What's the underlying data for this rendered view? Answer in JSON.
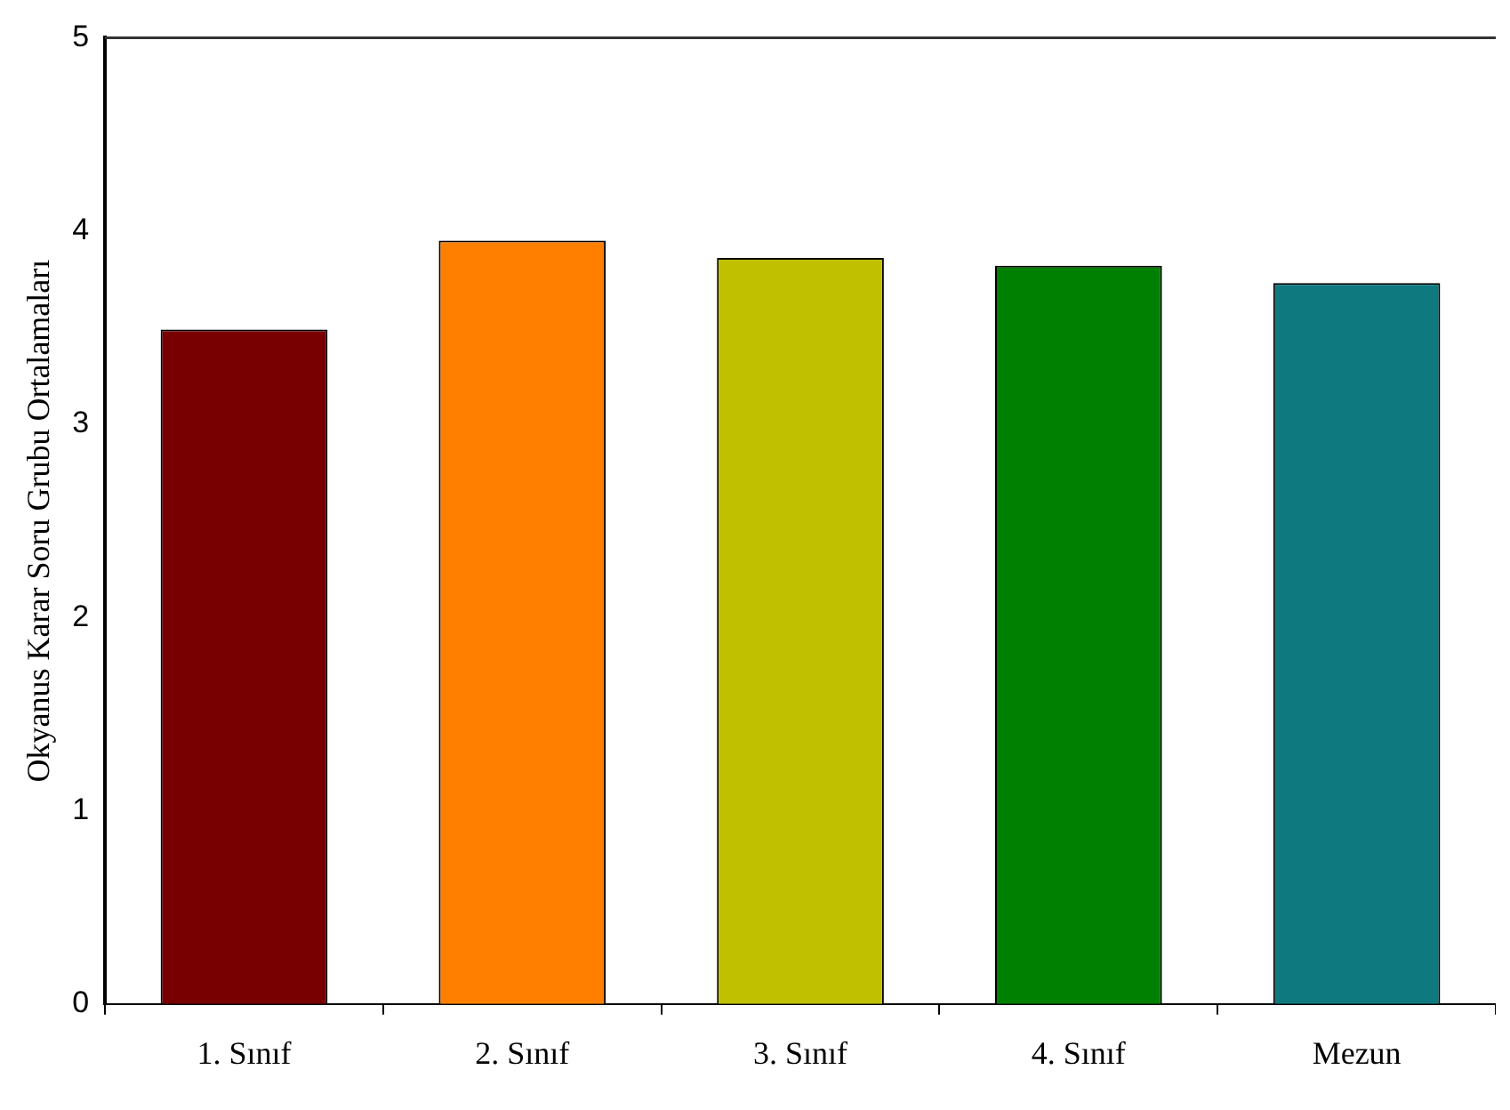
{
  "chart_data": {
    "type": "bar",
    "ylabel": "Okyanus Karar Soru Grubu Ortalamaları",
    "categories": [
      "1. Sınıf",
      "2. Sınıf",
      "3. Sınıf",
      "4. Sınıf",
      "Mezun"
    ],
    "values": [
      3.49,
      3.95,
      3.86,
      3.82,
      3.73
    ],
    "colors": [
      "#780000",
      "#ff8000",
      "#c0c000",
      "#008000",
      "#0e7a80"
    ],
    "ylim": [
      0,
      5
    ],
    "yticks": [
      0,
      1,
      2,
      3,
      4,
      5
    ],
    "grid": false,
    "legend": false
  }
}
